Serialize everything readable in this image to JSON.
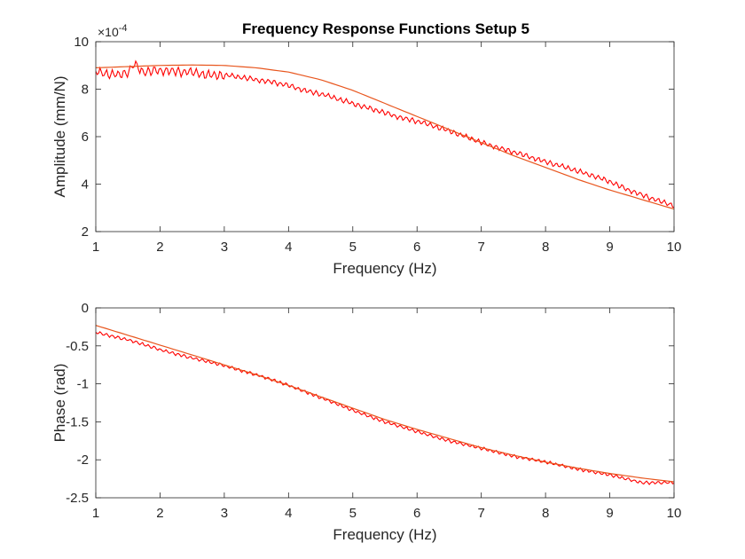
{
  "figure": {
    "title": "Frequency Response Functions Setup 5"
  },
  "chart_data": [
    {
      "type": "line",
      "title": "Frequency Response Functions Setup 5",
      "xlabel": "Frequency (Hz)",
      "ylabel": "Amplitude (mm/N)",
      "y_exponent_label": "×10",
      "y_exponent_power": "-4",
      "xlim": [
        1,
        10
      ],
      "ylim": [
        2,
        10
      ],
      "xticks": [
        1,
        2,
        3,
        4,
        5,
        6,
        7,
        8,
        9,
        10
      ],
      "yticks": [
        2,
        4,
        6,
        8,
        10
      ],
      "grid": false,
      "series": [
        {
          "color": "#ff0000",
          "style": "noisy-measured",
          "x": [
            1,
            1.25,
            1.5,
            1.6,
            1.75,
            2,
            2.25,
            2.5,
            2.75,
            3,
            3.25,
            3.5,
            3.75,
            4,
            4.25,
            4.5,
            4.75,
            5,
            5.25,
            5.5,
            5.75,
            6,
            6.25,
            6.5,
            6.75,
            7,
            7.25,
            7.5,
            7.75,
            8,
            8.25,
            8.5,
            8.75,
            9,
            9.25,
            9.5,
            9.75,
            10
          ],
          "y": [
            8.75,
            8.6,
            8.7,
            9.05,
            8.7,
            8.8,
            8.75,
            8.7,
            8.6,
            8.6,
            8.5,
            8.4,
            8.3,
            8.15,
            7.95,
            7.8,
            7.6,
            7.4,
            7.2,
            7.0,
            6.8,
            6.65,
            6.45,
            6.25,
            6.0,
            5.75,
            5.55,
            5.35,
            5.15,
            4.95,
            4.75,
            4.55,
            4.35,
            4.1,
            3.8,
            3.55,
            3.3,
            3.1
          ]
        },
        {
          "color": "#e8561e",
          "style": "fit",
          "x": [
            1,
            1.5,
            2,
            2.5,
            3,
            3.5,
            4,
            4.5,
            5,
            5.5,
            6,
            6.5,
            7,
            7.5,
            8,
            8.5,
            9,
            9.5,
            10
          ],
          "y": [
            8.9,
            8.95,
            9.0,
            9.02,
            9.0,
            8.9,
            8.72,
            8.4,
            7.95,
            7.4,
            6.85,
            6.3,
            5.75,
            5.2,
            4.7,
            4.2,
            3.75,
            3.35,
            2.95
          ]
        }
      ]
    },
    {
      "type": "line",
      "title": "",
      "xlabel": "Frequency (Hz)",
      "ylabel": "Phase (rad)",
      "xlim": [
        1,
        10
      ],
      "ylim": [
        -2.5,
        0
      ],
      "xticks": [
        1,
        2,
        3,
        4,
        5,
        6,
        7,
        8,
        9,
        10
      ],
      "yticks": [
        0,
        -0.5,
        -1,
        -1.5,
        -2,
        -2.5
      ],
      "grid": false,
      "series": [
        {
          "color": "#ff0000",
          "style": "noisy-measured",
          "x": [
            1,
            1.5,
            2,
            2.5,
            3,
            3.5,
            4,
            4.5,
            5,
            5.5,
            6,
            6.5,
            7,
            7.5,
            8,
            8.5,
            9,
            9.5,
            10
          ],
          "y": [
            -0.32,
            -0.42,
            -0.55,
            -0.66,
            -0.76,
            -0.88,
            -1.02,
            -1.18,
            -1.35,
            -1.5,
            -1.63,
            -1.75,
            -1.85,
            -1.95,
            -2.03,
            -2.12,
            -2.2,
            -2.3,
            -2.3
          ]
        },
        {
          "color": "#e8561e",
          "style": "fit",
          "x": [
            1,
            1.5,
            2,
            2.5,
            3,
            3.5,
            4,
            4.5,
            5,
            5.5,
            6,
            6.5,
            7,
            7.5,
            8,
            8.5,
            9,
            9.5,
            10
          ],
          "y": [
            -0.23,
            -0.36,
            -0.49,
            -0.62,
            -0.75,
            -0.88,
            -1.02,
            -1.17,
            -1.32,
            -1.47,
            -1.6,
            -1.72,
            -1.84,
            -1.94,
            -2.03,
            -2.11,
            -2.18,
            -2.24,
            -2.29
          ]
        }
      ]
    }
  ]
}
